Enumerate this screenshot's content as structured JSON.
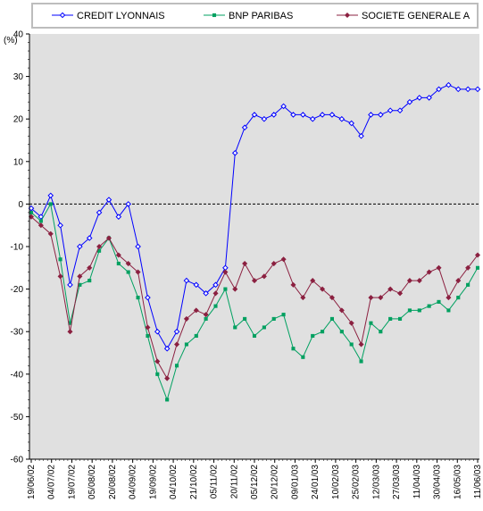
{
  "chart_data": {
    "type": "line",
    "ylabel": "(%)",
    "ylim": [
      -60,
      40
    ],
    "yticks": [
      40,
      30,
      20,
      10,
      0,
      -10,
      -20,
      -30,
      -40,
      -50,
      -60
    ],
    "grid": "none",
    "legend_position": "top",
    "plot_background": "#e0e0e0",
    "zero_line": "dashed",
    "x_tick_labels": [
      "19/06/02",
      "04/07/02",
      "19/07/02",
      "05/08/02",
      "20/08/02",
      "04/09/02",
      "19/09/02",
      "04/10/02",
      "21/10/02",
      "05/11/02",
      "20/11/02",
      "05/12/02",
      "20/12/02",
      "09/01/03",
      "24/01/03",
      "10/02/03",
      "25/02/03",
      "12/03/03",
      "27/03/03",
      "11/04/03",
      "30/04/03",
      "16/05/03",
      "11/06/03"
    ],
    "x": [
      "19/06/02",
      "26/06/02",
      "04/07/02",
      "11/07/02",
      "19/07/02",
      "26/07/02",
      "05/08/02",
      "12/08/02",
      "20/08/02",
      "27/08/02",
      "04/09/02",
      "11/09/02",
      "19/09/02",
      "26/09/02",
      "04/10/02",
      "11/10/02",
      "21/10/02",
      "28/10/02",
      "05/11/02",
      "12/11/02",
      "20/11/02",
      "27/11/02",
      "05/12/02",
      "12/12/02",
      "20/12/02",
      "31/12/02",
      "09/01/03",
      "16/01/03",
      "24/01/03",
      "31/01/03",
      "10/02/03",
      "17/02/03",
      "25/02/03",
      "04/03/03",
      "12/03/03",
      "19/03/03",
      "27/03/03",
      "03/04/03",
      "11/04/03",
      "22/04/03",
      "30/04/03",
      "07/05/03",
      "16/05/03",
      "26/05/03",
      "03/06/03",
      "11/06/03",
      "18/06/03"
    ],
    "series": [
      {
        "name": "CREDIT LYONNAIS",
        "color": "#0000ff",
        "marker": "diamond-open",
        "values": [
          -1,
          -3,
          2,
          -5,
          -19,
          -10,
          -8,
          -2,
          1,
          -3,
          0,
          -10,
          -22,
          -30,
          -34,
          -30,
          -18,
          -19,
          -21,
          -19,
          -15,
          12,
          18,
          21,
          20,
          21,
          23,
          21,
          21,
          20,
          21,
          21,
          20,
          19,
          16,
          21,
          21,
          22,
          22,
          24,
          25,
          25,
          27,
          28,
          27,
          27,
          27
        ]
      },
      {
        "name": "BNP PARIBAS",
        "color": "#00a060",
        "marker": "square",
        "values": [
          -2,
          -4,
          0,
          -13,
          -28,
          -19,
          -18,
          -11,
          -8,
          -14,
          -16,
          -22,
          -31,
          -40,
          -46,
          -38,
          -33,
          -31,
          -27,
          -24,
          -20,
          -29,
          -27,
          -31,
          -29,
          -27,
          -26,
          -34,
          -36,
          -31,
          -30,
          -27,
          -30,
          -33,
          -37,
          -28,
          -30,
          -27,
          -27,
          -25,
          -25,
          -24,
          -23,
          -25,
          -22,
          -19,
          -15
        ]
      },
      {
        "name": "SOCIETE GENERALE A",
        "color": "#8b2040",
        "marker": "diamond-filled",
        "values": [
          -3,
          -5,
          -7,
          -17,
          -30,
          -17,
          -15,
          -10,
          -8,
          -12,
          -14,
          -16,
          -29,
          -37,
          -41,
          -33,
          -27,
          -25,
          -26,
          -21,
          -16,
          -20,
          -14,
          -18,
          -17,
          -14,
          -13,
          -19,
          -22,
          -18,
          -20,
          -22,
          -25,
          -28,
          -33,
          -22,
          -22,
          -20,
          -21,
          -18,
          -18,
          -16,
          -15,
          -22,
          -18,
          -15,
          -12
        ]
      }
    ]
  }
}
